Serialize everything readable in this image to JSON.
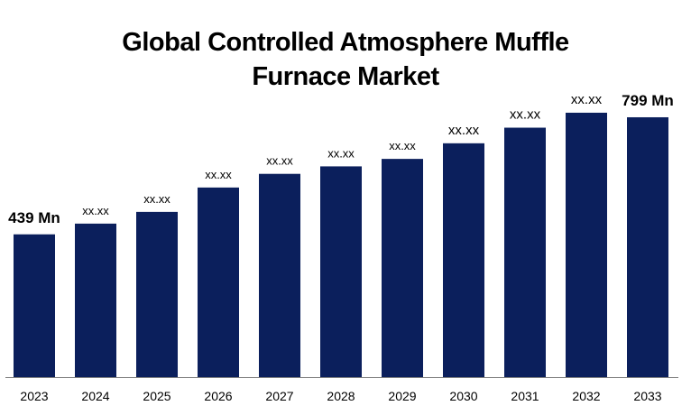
{
  "chart_data": {
    "type": "bar",
    "title_lines": [
      "Global Controlled Atmosphere Muffle",
      "Furnace Market"
    ],
    "categories": [
      "2023",
      "2024",
      "2025",
      "2026",
      "2027",
      "2028",
      "2029",
      "2030",
      "2031",
      "2032",
      "2033"
    ],
    "values": [
      439,
      472,
      508,
      583,
      625,
      648,
      671,
      719,
      767,
      813,
      799
    ],
    "data_labels": [
      "439 Mn",
      "xx.xx",
      "xx.xx",
      "xx.xx",
      "xx.xx",
      "xx.xx",
      "xx.xx",
      "xx.xx",
      "xx.xx",
      "xx.xx",
      "799 Mn"
    ],
    "xlabel": "",
    "ylabel": "",
    "ylim": [
      0,
      860
    ],
    "grid": false,
    "colors": {
      "bar": "#0b1f5c",
      "axis": "#7f7f7f",
      "text": "#000000"
    }
  }
}
